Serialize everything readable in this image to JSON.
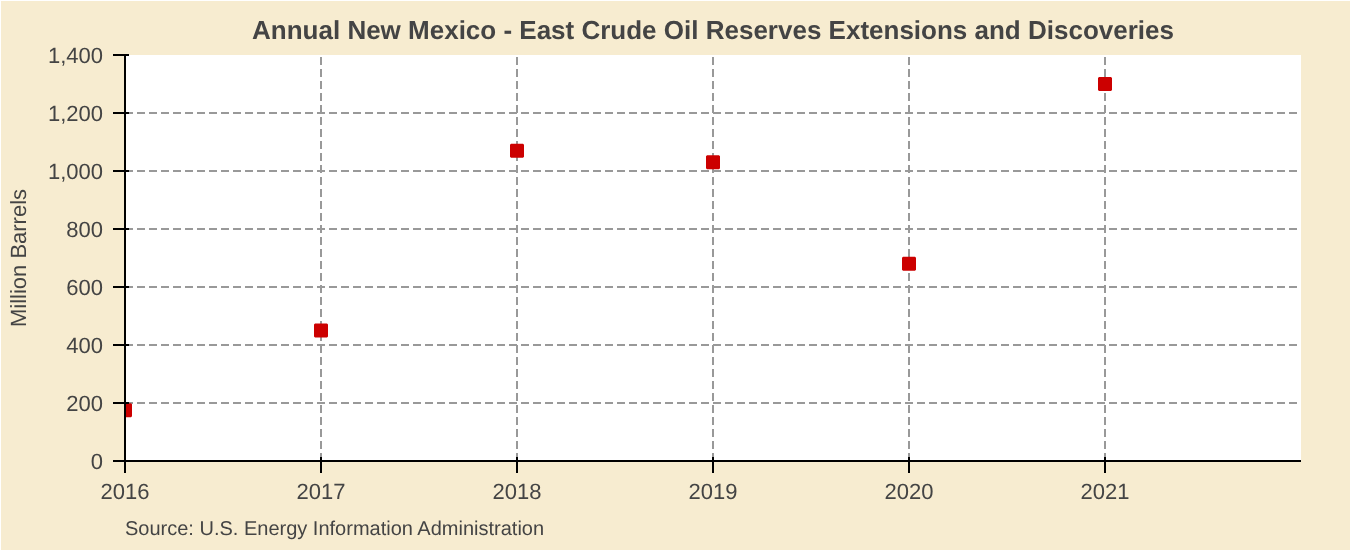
{
  "chart_data": {
    "type": "scatter",
    "title": "Annual New Mexico - East Crude Oil Reserves Extensions and Discoveries",
    "ylabel": "Million Barrels",
    "x": [
      2016,
      2017,
      2018,
      2019,
      2020,
      2021
    ],
    "series": [
      {
        "color": "#cc0000",
        "values": [
          175,
          450,
          1070,
          1030,
          680,
          1300
        ]
      }
    ],
    "xlim": [
      2016,
      2022
    ],
    "xticks": [
      2016,
      2017,
      2018,
      2019,
      2020,
      2021
    ],
    "ylim": [
      0,
      1400
    ],
    "yticks": [
      0,
      {
        "value": 200,
        "label": "200"
      },
      {
        "value": 400,
        "label": "400"
      },
      {
        "value": 600,
        "label": "600"
      },
      {
        "value": 800,
        "label": "800"
      },
      {
        "value": 1000,
        "label": "1,000"
      },
      {
        "value": 1200,
        "label": "1,200"
      },
      {
        "value": 1400,
        "label": "1,400"
      }
    ],
    "grid": true,
    "marker": "square",
    "annotations": [
      "Source: U.S. Energy Information Administration"
    ]
  }
}
